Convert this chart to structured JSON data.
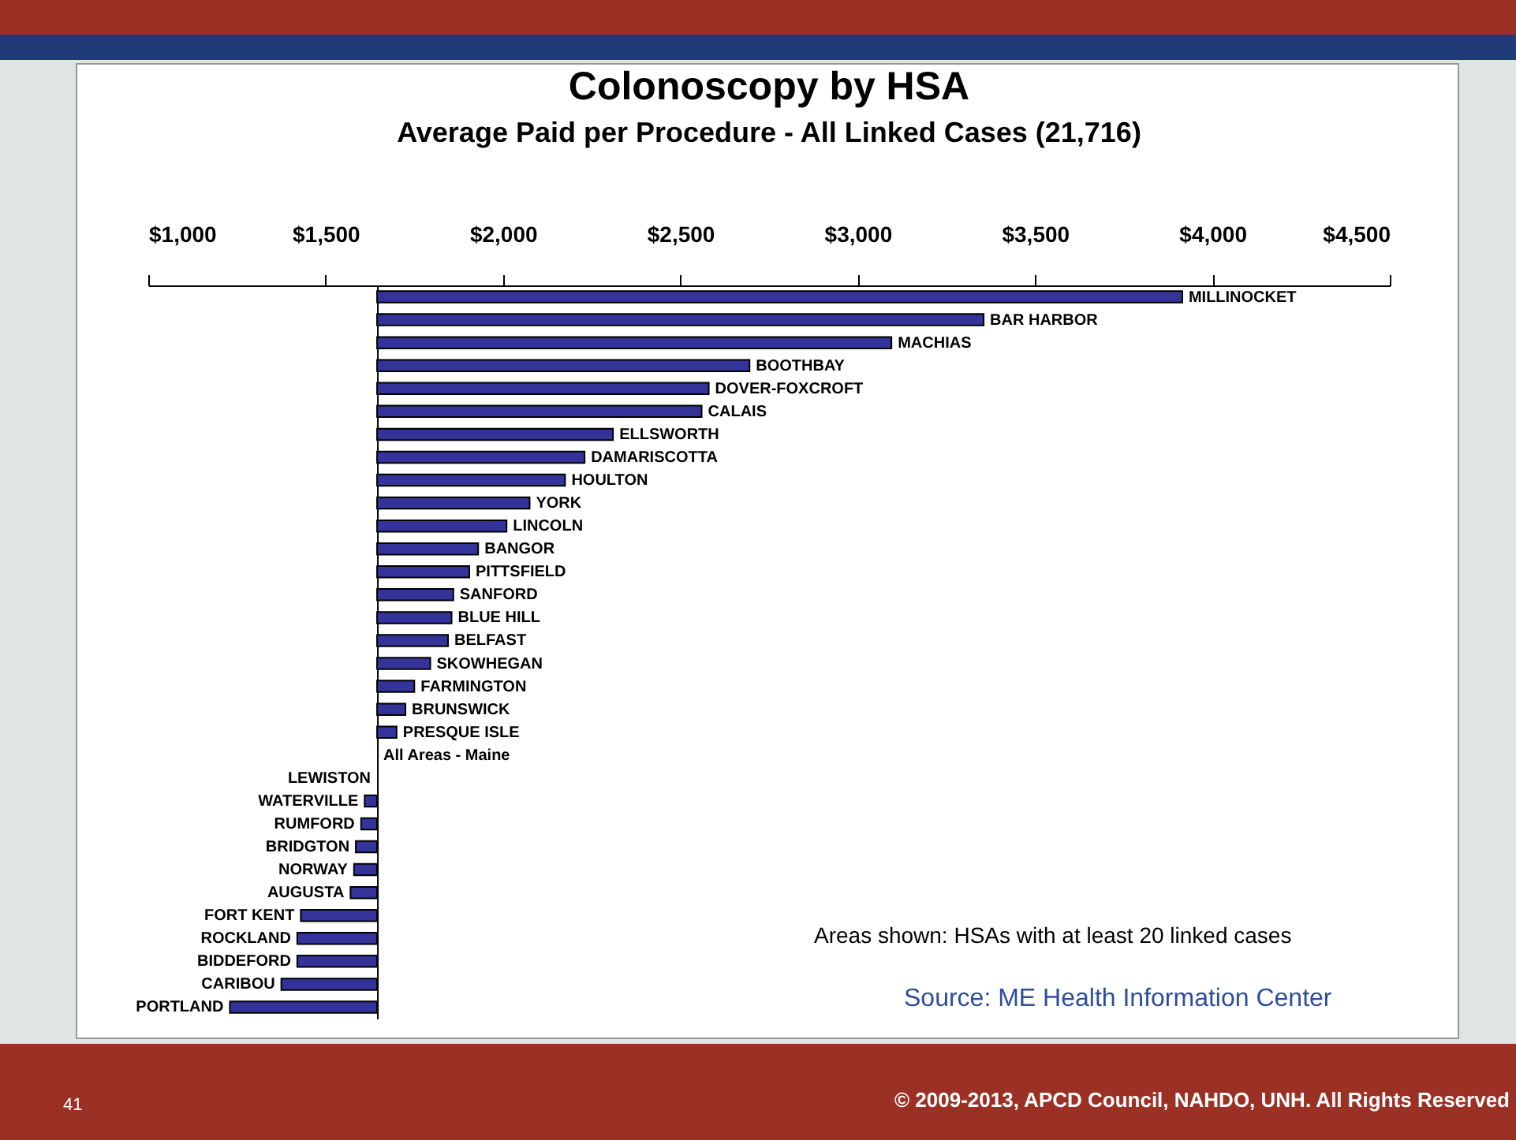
{
  "chart_data": {
    "type": "bar",
    "orientation": "horizontal",
    "title": "Colonoscopy by HSA",
    "subtitle": "Average Paid per Procedure - All Linked Cases (21,716)",
    "categories": [
      "MILLINOCKET",
      "BAR HARBOR",
      "MACHIAS",
      "BOOTHBAY",
      "DOVER-FOXCROFT",
      "CALAIS",
      "ELLSWORTH",
      "DAMARISCOTTA",
      "HOULTON",
      "YORK",
      "LINCOLN",
      "BANGOR",
      "PITTSFIELD",
      "SANFORD",
      "BLUE HILL",
      "BELFAST",
      "SKOWHEGAN",
      "FARMINGTON",
      "BRUNSWICK",
      "PRESQUE ISLE",
      "All Areas - Maine",
      "LEWISTON",
      "WATERVILLE",
      "RUMFORD",
      "BRIDGTON",
      "NORWAY",
      "AUGUSTA",
      "FORT KENT",
      "ROCKLAND",
      "BIDDEFORD",
      "CARIBOU",
      "PORTLAND"
    ],
    "base": [
      1645,
      1645,
      1645,
      1645,
      1645,
      1645,
      1645,
      1645,
      1645,
      1645,
      1645,
      1645,
      1645,
      1645,
      1645,
      1645,
      1645,
      1645,
      1645,
      1645,
      null,
      null,
      1645,
      1645,
      1645,
      1645,
      1645,
      1645,
      1645,
      1645,
      1645,
      1645
    ],
    "values": [
      2270,
      1710,
      1450,
      1050,
      935,
      915,
      665,
      585,
      530,
      430,
      365,
      285,
      260,
      215,
      210,
      200,
      150,
      105,
      80,
      55,
      null,
      null,
      -35,
      -45,
      -60,
      -65,
      -75,
      -215,
      -225,
      -225,
      -270,
      -415
    ],
    "color": "#333399",
    "xlim": [
      1000,
      4500
    ],
    "xticks": [
      {
        "value": 1000,
        "label": "$1,000"
      },
      {
        "value": 1500,
        "label": "$1,500"
      },
      {
        "value": 2000,
        "label": "$2,000"
      },
      {
        "value": 2500,
        "label": "$2,500"
      },
      {
        "value": 3000,
        "label": "$3,000"
      },
      {
        "value": 3500,
        "label": "$3,500"
      },
      {
        "value": 4000,
        "label": "$4,000"
      },
      {
        "value": 4500,
        "label": "$4,500"
      }
    ],
    "grid": false,
    "annotations": [
      "Areas shown: HSAs with at least 20 linked cases",
      "Source: ME Health Information Center",
      "41",
      "© 2009-2013, APCD Council, NAHDO, UNH. All Rights Reserved"
    ]
  }
}
